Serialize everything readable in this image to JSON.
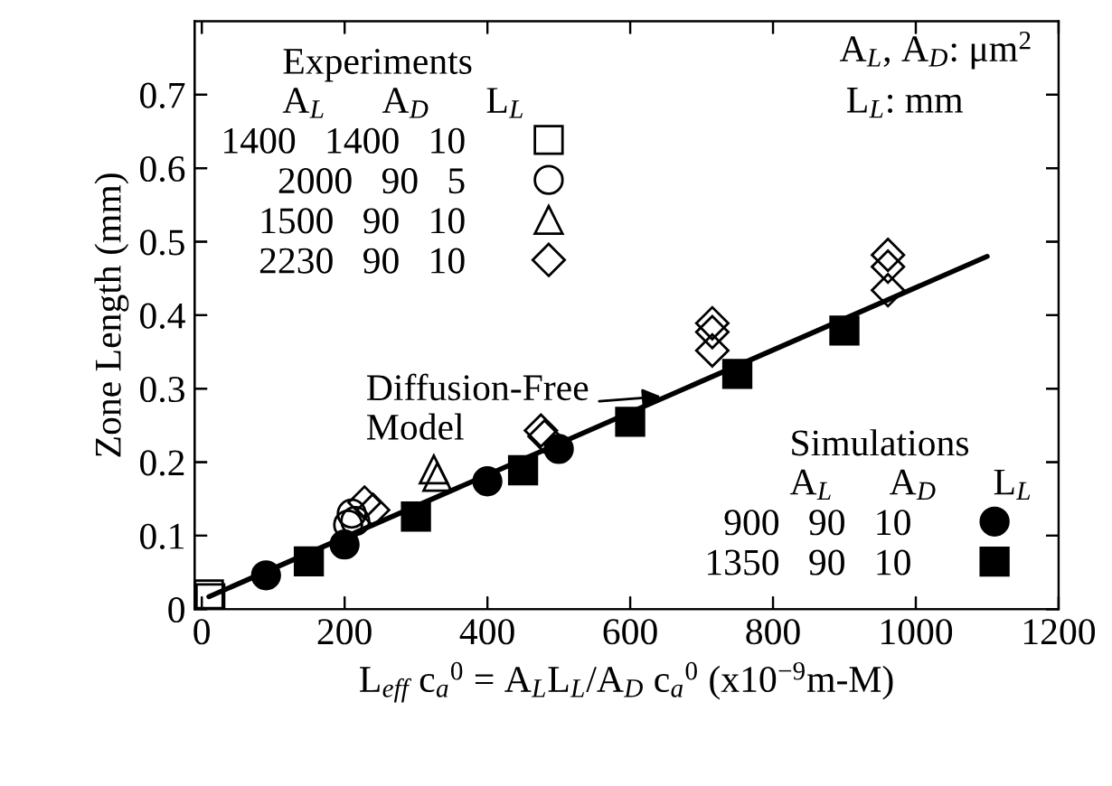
{
  "chart_data": [
    {
      "type": "scatter",
      "xlabel": "L$_{eff}$ c$_{a}$$^{0}$ = A$_{L}$L$_{L}$/A$_{D}$ c$_{a}$$^{0}$ (x10$^{−9}$m-M)",
      "ylabel": "Zone Length (mm)",
      "legend_title": "Experiments",
      "legend": "top left",
      "xlim": [
        -10,
        1200
      ],
      "xticks": [
        0,
        200,
        400,
        600,
        800,
        1000,
        1200
      ],
      "ylim": [
        0,
        0.8
      ],
      "yticks": [
        0,
        0.1,
        0.2,
        0.3,
        0.4,
        0.5,
        0.6,
        0.7
      ],
      "series": [
        {
          "name": "1400 1400 10",
          "color": "#000000",
          "marker": "square",
          "x": [
            10,
            12
          ],
          "values": [
            0.02,
            0.015
          ]
        },
        {
          "name": "2000 90 5",
          "color": "#000000",
          "marker": "circle",
          "x": [
            205,
            210,
            215
          ],
          "values": [
            0.115,
            0.13,
            0.12
          ]
        },
        {
          "name": "1500 90 10",
          "color": "#000000",
          "marker": "triangle",
          "x": [
            325,
            330
          ],
          "values": [
            0.19,
            0.18
          ]
        },
        {
          "name": "2230 90 10",
          "color": "#000000",
          "marker": "diamond",
          "x": [
            228,
            240,
            475,
            480,
            715,
            715,
            715,
            961,
            961,
            961
          ],
          "values": [
            0.145,
            0.135,
            0.243,
            0.235,
            0.389,
            0.377,
            0.352,
            0.482,
            0.466,
            0.434
          ]
        },
        {
          "type": "line",
          "color": "#000000",
          "marker": "none",
          "line_style": "solid",
          "x": [
            10,
            1100
          ],
          "values": [
            0.017,
            0.48
          ]
        }
      ],
      "annotations": [
        "A$_{L}$ A$_{D}$ L$_{L}$",
        "A$_{L}$, A$_{D}$: μm$^{2}$",
        "L$_{L}$: mm",
        {
          "text": "Diffusion-Free\nModel",
          "x": 650,
          "y": 0.29
        }
      ]
    },
    {
      "type": "scatter",
      "legend_title": "Simulations",
      "legend": "bottom right",
      "tick_labels": false,
      "xlim": [
        -10,
        1200
      ],
      "xticks": [
        0,
        200,
        400,
        600,
        800,
        1000,
        1200
      ],
      "ylim": [
        0,
        0.8
      ],
      "yticks": [
        0,
        0.1,
        0.2,
        0.3,
        0.4,
        0.5,
        0.6,
        0.7
      ],
      "series": [
        {
          "name": "900 90 10",
          "color": "#000000",
          "marker": "circle",
          "x": [
            90,
            200,
            400,
            500
          ],
          "values": [
            0.046,
            0.088,
            0.174,
            0.218
          ]
        },
        {
          "name": "1350 90 10",
          "color": "#000000",
          "marker": "square",
          "x": [
            150,
            300,
            450,
            600,
            750,
            900
          ],
          "values": [
            0.065,
            0.126,
            0.189,
            0.255,
            0.32,
            0.379
          ]
        }
      ],
      "annotations": [
        "A$_{L}$ A$_{D}$ L$_{L}$"
      ]
    }
  ]
}
